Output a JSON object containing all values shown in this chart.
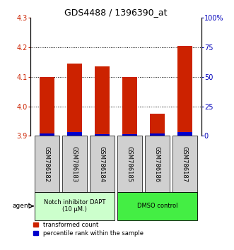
{
  "title": "GDS4488 / 1396390_at",
  "samples": [
    "GSM786182",
    "GSM786183",
    "GSM786184",
    "GSM786185",
    "GSM786186",
    "GSM786187"
  ],
  "red_values": [
    4.1,
    4.145,
    4.135,
    4.1,
    3.975,
    4.205
  ],
  "blue_values": [
    3.908,
    3.912,
    3.907,
    3.906,
    3.908,
    3.912
  ],
  "baseline": 3.9,
  "ylim_left": [
    3.9,
    4.3
  ],
  "ylim_right": [
    0,
    100
  ],
  "yticks_left": [
    3.9,
    4.0,
    4.1,
    4.2,
    4.3
  ],
  "yticks_right": [
    0,
    25,
    50,
    75,
    100
  ],
  "yticklabels_right": [
    "0",
    "25",
    "50",
    "75",
    "100%"
  ],
  "red_color": "#cc2200",
  "blue_color": "#0000cc",
  "grid_color": "#000000",
  "agent_labels": [
    "Notch inhibitor DAPT\n(10 μM.)",
    "DMSO control"
  ],
  "agent_bg_colors": [
    "#ccffcc",
    "#44ee44"
  ],
  "legend_items": [
    "transformed count",
    "percentile rank within the sample"
  ],
  "legend_colors": [
    "#cc2200",
    "#0000cc"
  ],
  "bar_width": 0.55,
  "left_tick_color": "#cc2200",
  "right_tick_color": "#0000bb",
  "tick_fontsize": 7,
  "title_fontsize": 9,
  "label_fontsize": 6,
  "legend_fontsize": 6
}
